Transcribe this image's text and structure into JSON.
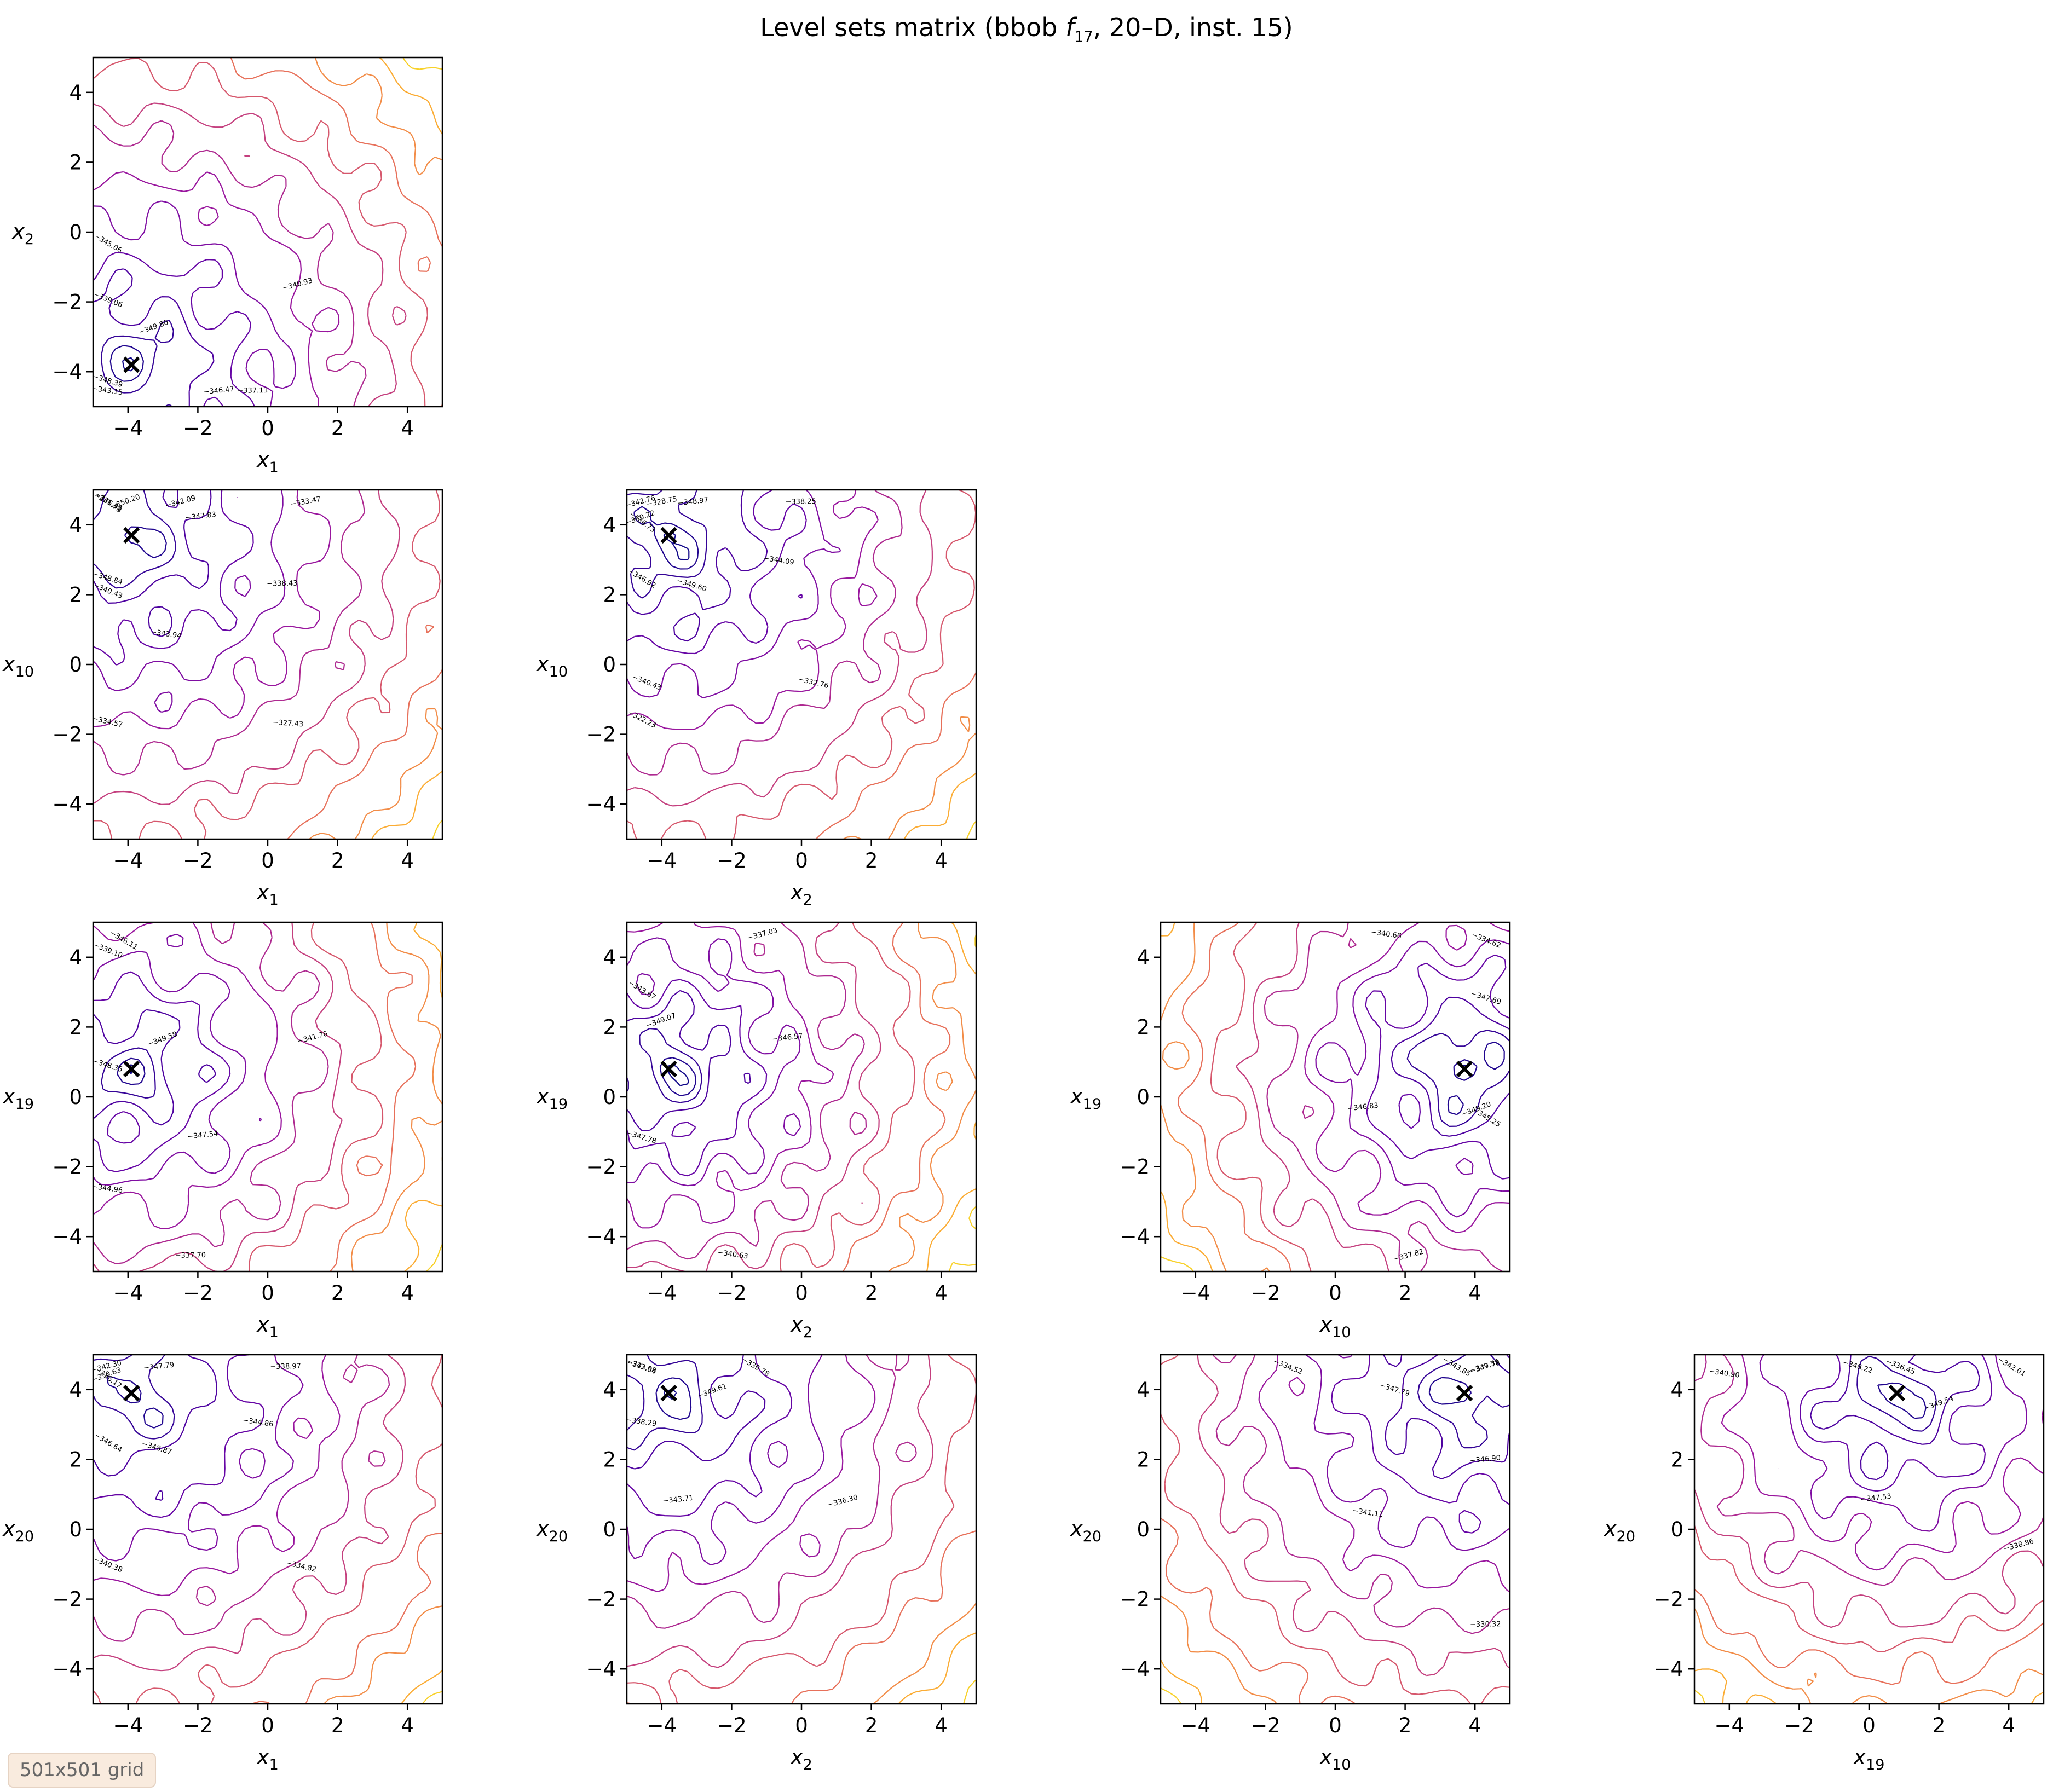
{
  "figure": {
    "title": {
      "prefix": "Level sets matrix (bbob ",
      "f": "f",
      "fsub": "17",
      "suffix": ", 20–D, inst. 15)"
    },
    "badge": "501x501 grid",
    "colormap": [
      "#0d0887",
      "#5c01a6",
      "#9c179e",
      "#cc4778",
      "#ed7953",
      "#fdb42f",
      "#f0f921"
    ]
  },
  "chart_data": {
    "type": "contour",
    "layout": "lower-triangular matrix, 4 rows",
    "ticks": [
      -4,
      -2,
      0,
      2,
      4
    ],
    "tick_labels": [
      "−4",
      "−2",
      "0",
      "2",
      "4"
    ],
    "xlim": [
      -5,
      5
    ],
    "ylim": [
      -5,
      5
    ],
    "optimum_marker": "x",
    "panels": [
      {
        "row": 0,
        "col": 0,
        "xvar": "1",
        "yvar": "2",
        "opt": [
          -3.9,
          -3.8
        ],
        "levels": [
          -349.8,
          -348.39,
          -346.47,
          -345.06,
          -343.15,
          -340.93,
          -339.06,
          -337.11
        ]
      },
      {
        "row": 1,
        "col": 0,
        "xvar": "1",
        "yvar": "10",
        "opt": [
          -3.9,
          3.7
        ],
        "levels": [
          -350.2,
          -348.84,
          -347.83,
          -345.38,
          -343.94,
          -342.09,
          -340.43,
          -338.43,
          -336.73,
          -334.57,
          -333.47,
          -331.47,
          -327.43
        ]
      },
      {
        "row": 1,
        "col": 1,
        "xvar": "2",
        "yvar": "10",
        "opt": [
          -3.8,
          3.7
        ],
        "levels": [
          -350.22,
          -349.6,
          -348.97,
          -346.92,
          -344.09,
          -342.76,
          -340.43,
          -338.25,
          -336.73,
          -332.76,
          -328.75,
          -322.23
        ]
      },
      {
        "row": 2,
        "col": 0,
        "xvar": "1",
        "yvar": "19",
        "opt": [
          -3.9,
          0.8
        ],
        "levels": [
          -349.58,
          -348.35,
          -347.54,
          -346.11,
          -344.96,
          -341.76,
          -339.1,
          -337.7
        ]
      },
      {
        "row": 2,
        "col": 1,
        "xvar": "2",
        "yvar": "19",
        "opt": [
          -3.8,
          0.8
        ],
        "levels": [
          -349.07,
          -347.78,
          -346.57,
          -343.67,
          -340.63,
          -337.03
        ]
      },
      {
        "row": 2,
        "col": 2,
        "xvar": "10",
        "yvar": "19",
        "opt": [
          3.7,
          0.8
        ],
        "levels": [
          -349.2,
          -347.69,
          -346.83,
          -345.25,
          -340.66,
          -337.82,
          -334.62
        ]
      },
      {
        "row": 3,
        "col": 0,
        "xvar": "1",
        "yvar": "20",
        "opt": [
          -3.9,
          3.9
        ],
        "levels": [
          -350.63,
          -348.87,
          -347.79,
          -346.64,
          -344.86,
          -342.3,
          -340.38,
          -338.97,
          -336.17,
          -334.82
        ]
      },
      {
        "row": 3,
        "col": 1,
        "xvar": "2",
        "yvar": "20",
        "opt": [
          -3.8,
          3.9
        ],
        "levels": [
          -349.61,
          -347.98,
          -343.71,
          -339.78,
          -338.29,
          -336.3,
          -333.04
        ]
      },
      {
        "row": 3,
        "col": 2,
        "xvar": "10",
        "yvar": "20",
        "opt": [
          3.7,
          3.9
        ],
        "levels": [
          -349.55,
          -347.79,
          -346.9,
          -343.85,
          -341.11,
          -337.78,
          -334.52,
          -330.32
        ]
      },
      {
        "row": 3,
        "col": 3,
        "xvar": "19",
        "yvar": "20",
        "opt": [
          0.8,
          3.9
        ],
        "levels": [
          -349.54,
          -348.22,
          -347.53,
          -342.01,
          -340.9,
          -338.86,
          -336.45
        ]
      }
    ]
  }
}
